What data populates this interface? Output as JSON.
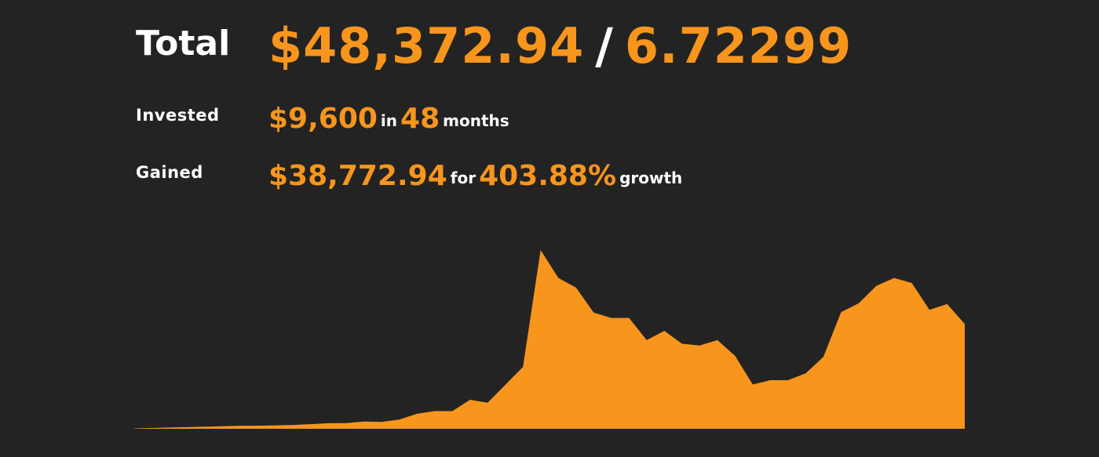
{
  "summary": {
    "total_label": "Total",
    "total_value": "$48,372.94",
    "separator": "/",
    "total_units": "6.72299",
    "invested_label": "Invested",
    "invested_value": "$9,600",
    "invested_in": "in",
    "invested_months": "48",
    "invested_unit": "months",
    "gained_label": "Gained",
    "gained_value": "$38,772.94",
    "gained_for": "for",
    "gained_percent": "403.88%",
    "gained_unit": "growth"
  },
  "colors": {
    "accent": "#f7951d",
    "background": "#232323",
    "text": "#ffffff"
  },
  "chart_data": {
    "type": "area",
    "title": "",
    "xlabel": "",
    "ylabel": "",
    "grid": false,
    "legend": "none",
    "x": [
      1,
      2,
      3,
      4,
      5,
      6,
      7,
      8,
      9,
      10,
      11,
      12,
      13,
      14,
      15,
      16,
      17,
      18,
      19,
      20,
      21,
      22,
      23,
      24,
      25,
      26,
      27,
      28,
      29,
      30,
      31,
      32,
      33,
      34,
      35,
      36,
      37,
      38,
      39,
      40,
      41,
      42,
      43,
      44,
      45,
      46,
      47,
      48
    ],
    "ylim": [
      0,
      50000
    ],
    "series": [
      {
        "values": [
          120,
          230,
          360,
          460,
          560,
          720,
          850,
          850,
          960,
          1080,
          1290,
          1560,
          1600,
          2040,
          1930,
          2590,
          4180,
          4950,
          4940,
          8120,
          7280,
          12300,
          17300,
          50000,
          42200,
          39500,
          32500,
          31000,
          31000,
          24800,
          27400,
          23800,
          23300,
          24800,
          20400,
          12400,
          13600,
          13600,
          15500,
          20100,
          32600,
          35100,
          40000,
          42200,
          40800,
          33300,
          34900,
          29300
        ]
      }
    ]
  }
}
